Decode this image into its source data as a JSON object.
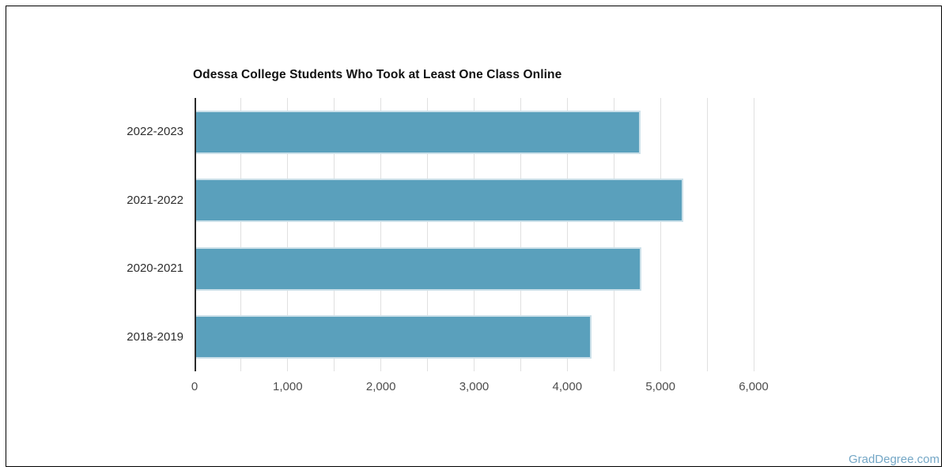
{
  "page": {
    "background": "#ffffff",
    "frame_border_color": "#000000",
    "watermark": "GradDegree.com",
    "watermark_color": "#74a7c6"
  },
  "chart_data": {
    "type": "bar",
    "orientation": "horizontal",
    "title": "Odessa College Students Who Took at Least One Class Online",
    "categories": [
      "2022-2023",
      "2021-2022",
      "2020-2021",
      "2018-2019"
    ],
    "values": [
      4770,
      5230,
      4775,
      4240
    ],
    "xlabel": "",
    "ylabel": "",
    "xlim": [
      0,
      6000
    ],
    "x_tick_interval": 1000,
    "x_tick_labels": [
      "0",
      "1,000",
      "2,000",
      "3,000",
      "4,000",
      "5,000",
      "6,000"
    ],
    "gridline_interval": 500,
    "grid": true,
    "legend": false,
    "bar_color": "#5aa0bc",
    "bar_border_color": "#cbe0e9",
    "grid_color": "#e0e0e0",
    "axis_line_color": "#2b2b2b",
    "tick_label_color": "#4d4d4d",
    "category_label_color": "#2e2e2e",
    "title_color": "#111111"
  }
}
